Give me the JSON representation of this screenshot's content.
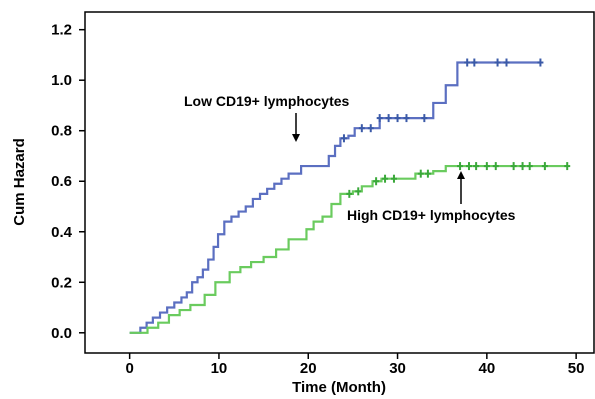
{
  "chart_data": {
    "type": "line",
    "step": true,
    "xlabel": "Time (Month)",
    "ylabel": "Cum Hazard",
    "xlim": [
      -5,
      52
    ],
    "ylim": [
      -0.08,
      1.27
    ],
    "xticks": [
      0,
      10,
      20,
      30,
      40,
      50
    ],
    "xtick_labels": [
      "0",
      "10",
      "20",
      "30",
      "40",
      "50"
    ],
    "yticks": [
      0.0,
      0.2,
      0.4,
      0.6,
      0.8,
      1.0,
      1.2
    ],
    "ytick_labels": [
      "0.0",
      "0.2",
      "0.4",
      "0.6",
      "0.8",
      "1.0",
      "1.2"
    ],
    "grid": false,
    "series": [
      {
        "name": "Low CD19+ lymphocytes",
        "color": "#5b6fc1",
        "censor_color": "#3b5aa8",
        "step_points": [
          [
            0,
            0.0
          ],
          [
            1.2,
            0.02
          ],
          [
            1.9,
            0.04
          ],
          [
            2.6,
            0.06
          ],
          [
            3.4,
            0.08
          ],
          [
            4.2,
            0.1
          ],
          [
            5.0,
            0.12
          ],
          [
            5.8,
            0.14
          ],
          [
            6.4,
            0.16
          ],
          [
            7.0,
            0.2
          ],
          [
            7.6,
            0.22
          ],
          [
            8.2,
            0.25
          ],
          [
            8.8,
            0.29
          ],
          [
            9.4,
            0.34
          ],
          [
            9.9,
            0.39
          ],
          [
            10.6,
            0.44
          ],
          [
            11.4,
            0.46
          ],
          [
            12.2,
            0.48
          ],
          [
            13.0,
            0.5
          ],
          [
            13.8,
            0.53
          ],
          [
            14.6,
            0.55
          ],
          [
            15.4,
            0.57
          ],
          [
            16.2,
            0.59
          ],
          [
            17.0,
            0.61
          ],
          [
            17.8,
            0.63
          ],
          [
            19.2,
            0.66
          ],
          [
            22.3,
            0.7
          ],
          [
            23.0,
            0.74
          ],
          [
            23.6,
            0.77
          ],
          [
            24.5,
            0.78
          ],
          [
            25.2,
            0.81
          ],
          [
            28.0,
            0.85
          ],
          [
            34.0,
            0.91
          ],
          [
            35.4,
            0.98
          ],
          [
            36.7,
            1.07
          ],
          [
            46.0,
            1.07
          ]
        ],
        "censored_x": [
          24.0,
          26.0,
          27.0,
          28.0,
          29.0,
          30.0,
          31.0,
          33.0,
          37.8,
          38.6,
          41.2,
          42.2,
          46.0
        ],
        "annotation": "Low CD19+ lymphocytes"
      },
      {
        "name": "High CD19+ lymphocytes",
        "color": "#6acb5e",
        "censor_color": "#3aa83a",
        "step_points": [
          [
            0,
            0.0
          ],
          [
            2.0,
            0.02
          ],
          [
            3.2,
            0.04
          ],
          [
            4.4,
            0.07
          ],
          [
            5.6,
            0.09
          ],
          [
            6.8,
            0.11
          ],
          [
            8.4,
            0.15
          ],
          [
            9.6,
            0.2
          ],
          [
            11.2,
            0.24
          ],
          [
            12.4,
            0.26
          ],
          [
            13.6,
            0.28
          ],
          [
            15.0,
            0.3
          ],
          [
            16.4,
            0.33
          ],
          [
            17.8,
            0.37
          ],
          [
            19.8,
            0.41
          ],
          [
            20.6,
            0.44
          ],
          [
            21.6,
            0.46
          ],
          [
            22.6,
            0.51
          ],
          [
            23.6,
            0.55
          ],
          [
            25.0,
            0.56
          ],
          [
            26.0,
            0.58
          ],
          [
            27.2,
            0.6
          ],
          [
            28.2,
            0.61
          ],
          [
            32.0,
            0.63
          ],
          [
            34.0,
            0.64
          ],
          [
            35.4,
            0.66
          ],
          [
            49.0,
            0.66
          ]
        ],
        "censored_x": [
          24.6,
          25.6,
          27.6,
          28.6,
          29.6,
          32.6,
          33.4,
          37.0,
          38.0,
          38.8,
          40.0,
          41.0,
          43.0,
          44.0,
          44.8,
          46.5,
          49.0
        ],
        "annotation": "High CD19+ lymphocytes"
      }
    ]
  }
}
